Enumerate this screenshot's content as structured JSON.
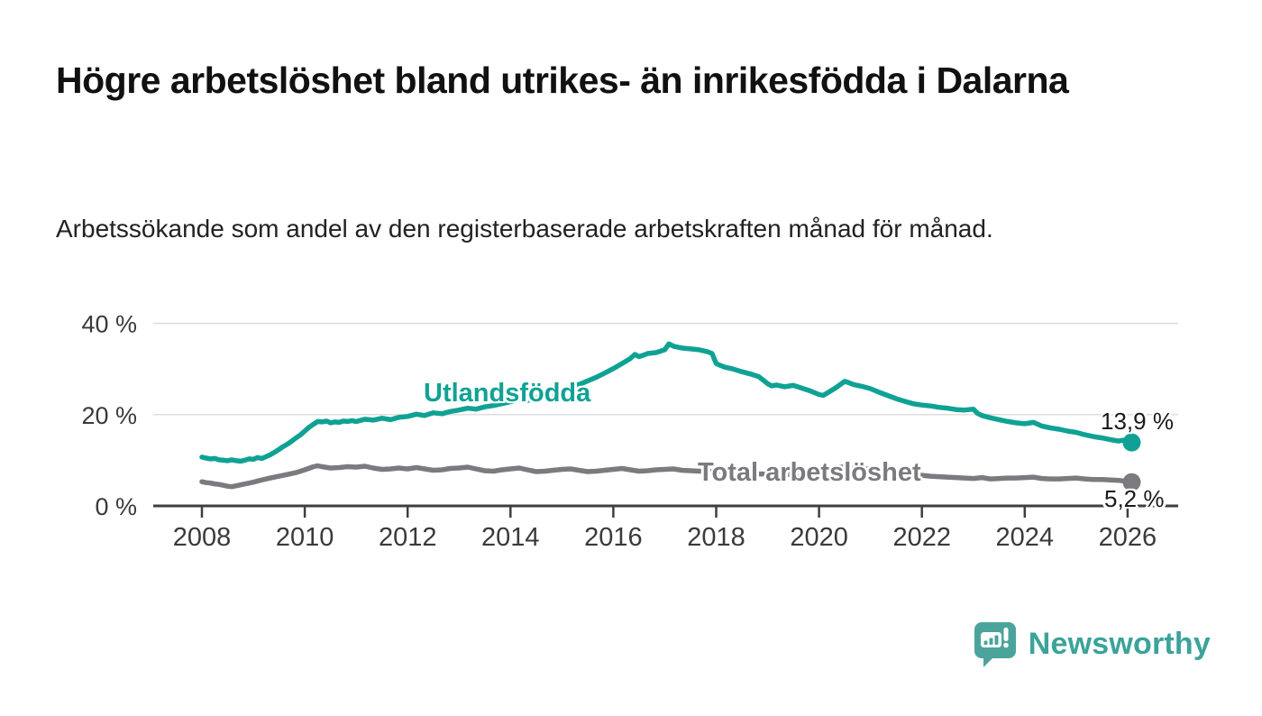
{
  "header": {
    "title": "Högre arbetslöshet bland utrikes- än inrikesfödda i Dalarna",
    "subtitle": "Arbetssökande som andel av den registerbaserade arbetskraften månad för månad."
  },
  "chart_data": {
    "type": "line",
    "title": "Högre arbetslöshet bland utrikes- än inrikesfödda i Dalarna",
    "subtitle": "Arbetssökande som andel av den registerbaserade arbetskraften månad för månad.",
    "xlabel": "",
    "ylabel": "",
    "grid": "horizontal",
    "legend_position": "inline-labels",
    "ylim": [
      0,
      43
    ],
    "xlim": [
      2007.0,
      2027.0
    ],
    "y_ticks": [
      {
        "value": 0,
        "label": "0 %"
      },
      {
        "value": 20,
        "label": "20 %"
      },
      {
        "value": 40,
        "label": "40 %"
      }
    ],
    "x_ticks": [
      2008,
      2010,
      2012,
      2014,
      2016,
      2018,
      2020,
      2022,
      2024,
      2026
    ],
    "colors": {
      "utlandsfodda": "#0fa294",
      "total": "#7a7a7f",
      "axis": "#3f3f3f",
      "grid": "#dcdcdc",
      "tick_label": "#3a3a3a"
    },
    "series": [
      {
        "name": "Utlandsfödda",
        "color": "#0fa294",
        "end_label": "13,9 %",
        "end_value": 13.9,
        "points": [
          [
            2008.0,
            10.7
          ],
          [
            2008.08,
            10.5
          ],
          [
            2008.17,
            10.3
          ],
          [
            2008.25,
            10.4
          ],
          [
            2008.33,
            10.1
          ],
          [
            2008.42,
            10.0
          ],
          [
            2008.5,
            9.9
          ],
          [
            2008.58,
            10.1
          ],
          [
            2008.67,
            9.9
          ],
          [
            2008.75,
            9.8
          ],
          [
            2008.83,
            10.0
          ],
          [
            2008.92,
            10.3
          ],
          [
            2009.0,
            10.2
          ],
          [
            2009.08,
            10.6
          ],
          [
            2009.17,
            10.4
          ],
          [
            2009.25,
            10.8
          ],
          [
            2009.33,
            11.2
          ],
          [
            2009.42,
            11.8
          ],
          [
            2009.5,
            12.4
          ],
          [
            2009.58,
            13.0
          ],
          [
            2009.67,
            13.6
          ],
          [
            2009.75,
            14.2
          ],
          [
            2009.83,
            14.9
          ],
          [
            2009.92,
            15.6
          ],
          [
            2010.0,
            16.4
          ],
          [
            2010.08,
            17.2
          ],
          [
            2010.17,
            17.9
          ],
          [
            2010.25,
            18.5
          ],
          [
            2010.33,
            18.4
          ],
          [
            2010.42,
            18.6
          ],
          [
            2010.5,
            18.2
          ],
          [
            2010.58,
            18.4
          ],
          [
            2010.67,
            18.3
          ],
          [
            2010.75,
            18.6
          ],
          [
            2010.83,
            18.5
          ],
          [
            2010.92,
            18.7
          ],
          [
            2011.0,
            18.5
          ],
          [
            2011.17,
            19.0
          ],
          [
            2011.33,
            18.8
          ],
          [
            2011.5,
            19.2
          ],
          [
            2011.67,
            18.9
          ],
          [
            2011.83,
            19.4
          ],
          [
            2012.0,
            19.6
          ],
          [
            2012.17,
            20.1
          ],
          [
            2012.33,
            19.8
          ],
          [
            2012.5,
            20.4
          ],
          [
            2012.67,
            20.2
          ],
          [
            2012.83,
            20.7
          ],
          [
            2013.0,
            21.0
          ],
          [
            2013.17,
            21.4
          ],
          [
            2013.33,
            21.2
          ],
          [
            2013.5,
            21.7
          ],
          [
            2013.67,
            22.0
          ],
          [
            2013.83,
            22.4
          ],
          [
            2014.0,
            22.8
          ],
          [
            2014.17,
            23.3
          ],
          [
            2014.33,
            23.1
          ],
          [
            2014.5,
            23.7
          ],
          [
            2014.67,
            24.2
          ],
          [
            2014.83,
            24.7
          ],
          [
            2015.0,
            25.3
          ],
          [
            2015.17,
            25.9
          ],
          [
            2015.33,
            26.6
          ],
          [
            2015.5,
            27.4
          ],
          [
            2015.67,
            28.2
          ],
          [
            2015.83,
            29.1
          ],
          [
            2016.0,
            30.1
          ],
          [
            2016.17,
            31.2
          ],
          [
            2016.33,
            32.3
          ],
          [
            2016.42,
            33.2
          ],
          [
            2016.5,
            32.7
          ],
          [
            2016.58,
            33.0
          ],
          [
            2016.67,
            33.4
          ],
          [
            2016.83,
            33.6
          ],
          [
            2017.0,
            34.2
          ],
          [
            2017.08,
            35.5
          ],
          [
            2017.17,
            35.0
          ],
          [
            2017.33,
            34.6
          ],
          [
            2017.5,
            34.4
          ],
          [
            2017.67,
            34.2
          ],
          [
            2017.83,
            33.8
          ],
          [
            2017.92,
            33.4
          ],
          [
            2018.0,
            31.2
          ],
          [
            2018.08,
            30.8
          ],
          [
            2018.17,
            30.4
          ],
          [
            2018.33,
            30.0
          ],
          [
            2018.5,
            29.4
          ],
          [
            2018.67,
            28.9
          ],
          [
            2018.83,
            28.3
          ],
          [
            2019.0,
            26.8
          ],
          [
            2019.08,
            26.3
          ],
          [
            2019.17,
            26.5
          ],
          [
            2019.33,
            26.1
          ],
          [
            2019.5,
            26.4
          ],
          [
            2019.67,
            25.8
          ],
          [
            2019.83,
            25.2
          ],
          [
            2020.0,
            24.4
          ],
          [
            2020.08,
            24.2
          ],
          [
            2020.17,
            24.8
          ],
          [
            2020.33,
            25.9
          ],
          [
            2020.5,
            27.3
          ],
          [
            2020.58,
            27.0
          ],
          [
            2020.67,
            26.6
          ],
          [
            2020.83,
            26.2
          ],
          [
            2021.0,
            25.7
          ],
          [
            2021.17,
            24.9
          ],
          [
            2021.33,
            24.2
          ],
          [
            2021.5,
            23.5
          ],
          [
            2021.67,
            22.9
          ],
          [
            2021.83,
            22.4
          ],
          [
            2022.0,
            22.1
          ],
          [
            2022.17,
            21.9
          ],
          [
            2022.33,
            21.6
          ],
          [
            2022.5,
            21.4
          ],
          [
            2022.67,
            21.1
          ],
          [
            2022.83,
            21.0
          ],
          [
            2023.0,
            21.2
          ],
          [
            2023.08,
            20.3
          ],
          [
            2023.17,
            19.8
          ],
          [
            2023.33,
            19.3
          ],
          [
            2023.5,
            18.9
          ],
          [
            2023.67,
            18.5
          ],
          [
            2023.83,
            18.2
          ],
          [
            2024.0,
            18.0
          ],
          [
            2024.17,
            18.3
          ],
          [
            2024.33,
            17.5
          ],
          [
            2024.5,
            17.1
          ],
          [
            2024.67,
            16.8
          ],
          [
            2024.83,
            16.4
          ],
          [
            2025.0,
            16.1
          ],
          [
            2025.17,
            15.6
          ],
          [
            2025.33,
            15.2
          ],
          [
            2025.5,
            14.9
          ],
          [
            2025.67,
            14.5
          ],
          [
            2025.83,
            14.2
          ],
          [
            2025.92,
            14.4
          ],
          [
            2026.08,
            13.9
          ]
        ]
      },
      {
        "name": "Total arbetslöshet",
        "color": "#7a7a7f",
        "end_label": "5,2 %",
        "end_value": 5.2,
        "points": [
          [
            2008.0,
            5.3
          ],
          [
            2008.08,
            5.1
          ],
          [
            2008.17,
            5.0
          ],
          [
            2008.25,
            4.8
          ],
          [
            2008.33,
            4.7
          ],
          [
            2008.42,
            4.5
          ],
          [
            2008.5,
            4.3
          ],
          [
            2008.58,
            4.2
          ],
          [
            2008.67,
            4.4
          ],
          [
            2008.75,
            4.6
          ],
          [
            2008.83,
            4.8
          ],
          [
            2008.92,
            5.0
          ],
          [
            2009.0,
            5.2
          ],
          [
            2009.17,
            5.7
          ],
          [
            2009.33,
            6.1
          ],
          [
            2009.5,
            6.5
          ],
          [
            2009.67,
            6.9
          ],
          [
            2009.83,
            7.3
          ],
          [
            2010.0,
            7.9
          ],
          [
            2010.17,
            8.6
          ],
          [
            2010.25,
            8.8
          ],
          [
            2010.33,
            8.6
          ],
          [
            2010.5,
            8.3
          ],
          [
            2010.67,
            8.4
          ],
          [
            2010.83,
            8.6
          ],
          [
            2011.0,
            8.5
          ],
          [
            2011.17,
            8.7
          ],
          [
            2011.33,
            8.3
          ],
          [
            2011.5,
            8.0
          ],
          [
            2011.67,
            8.1
          ],
          [
            2011.83,
            8.3
          ],
          [
            2012.0,
            8.1
          ],
          [
            2012.17,
            8.4
          ],
          [
            2012.33,
            8.1
          ],
          [
            2012.5,
            7.8
          ],
          [
            2012.67,
            7.9
          ],
          [
            2012.83,
            8.2
          ],
          [
            2013.0,
            8.3
          ],
          [
            2013.17,
            8.5
          ],
          [
            2013.33,
            8.1
          ],
          [
            2013.5,
            7.7
          ],
          [
            2013.67,
            7.6
          ],
          [
            2013.83,
            7.9
          ],
          [
            2014.0,
            8.1
          ],
          [
            2014.17,
            8.3
          ],
          [
            2014.33,
            7.9
          ],
          [
            2014.5,
            7.5
          ],
          [
            2014.67,
            7.6
          ],
          [
            2014.83,
            7.8
          ],
          [
            2015.0,
            8.0
          ],
          [
            2015.17,
            8.1
          ],
          [
            2015.33,
            7.8
          ],
          [
            2015.5,
            7.5
          ],
          [
            2015.67,
            7.6
          ],
          [
            2015.83,
            7.8
          ],
          [
            2016.0,
            8.0
          ],
          [
            2016.17,
            8.2
          ],
          [
            2016.33,
            7.9
          ],
          [
            2016.5,
            7.6
          ],
          [
            2016.67,
            7.7
          ],
          [
            2016.83,
            7.9
          ],
          [
            2017.0,
            8.0
          ],
          [
            2017.17,
            8.1
          ],
          [
            2017.33,
            7.8
          ],
          [
            2017.5,
            7.7
          ],
          [
            2017.67,
            7.6
          ],
          [
            2017.83,
            7.5
          ],
          [
            2018.0,
            7.6
          ],
          [
            2018.17,
            7.7
          ],
          [
            2018.33,
            7.4
          ],
          [
            2018.5,
            7.2
          ],
          [
            2018.67,
            7.1
          ],
          [
            2018.83,
            7.0
          ],
          [
            2019.0,
            7.0
          ],
          [
            2019.17,
            7.1
          ],
          [
            2019.33,
            6.9
          ],
          [
            2019.5,
            6.9
          ],
          [
            2019.67,
            6.8
          ],
          [
            2019.83,
            6.9
          ],
          [
            2020.0,
            7.2
          ],
          [
            2020.17,
            7.8
          ],
          [
            2020.33,
            8.3
          ],
          [
            2020.5,
            8.6
          ],
          [
            2020.67,
            8.4
          ],
          [
            2020.83,
            8.2
          ],
          [
            2021.0,
            8.0
          ],
          [
            2021.17,
            7.8
          ],
          [
            2021.33,
            7.5
          ],
          [
            2021.5,
            7.2
          ],
          [
            2021.67,
            7.0
          ],
          [
            2021.83,
            6.8
          ],
          [
            2022.0,
            6.7
          ],
          [
            2022.17,
            6.5
          ],
          [
            2022.33,
            6.4
          ],
          [
            2022.5,
            6.3
          ],
          [
            2022.67,
            6.2
          ],
          [
            2022.83,
            6.1
          ],
          [
            2023.0,
            6.0
          ],
          [
            2023.17,
            6.2
          ],
          [
            2023.33,
            5.9
          ],
          [
            2023.5,
            6.0
          ],
          [
            2023.67,
            6.1
          ],
          [
            2023.83,
            6.1
          ],
          [
            2024.0,
            6.2
          ],
          [
            2024.17,
            6.3
          ],
          [
            2024.33,
            6.0
          ],
          [
            2024.5,
            5.9
          ],
          [
            2024.67,
            5.9
          ],
          [
            2024.83,
            6.0
          ],
          [
            2025.0,
            6.1
          ],
          [
            2025.17,
            5.9
          ],
          [
            2025.33,
            5.8
          ],
          [
            2025.5,
            5.8
          ],
          [
            2025.67,
            5.7
          ],
          [
            2025.83,
            5.6
          ],
          [
            2026.08,
            5.2
          ]
        ]
      }
    ]
  },
  "branding": {
    "logo_text": "Newsworthy",
    "logo_color": "#3ba39a",
    "icon_color": "#4ba49c"
  }
}
